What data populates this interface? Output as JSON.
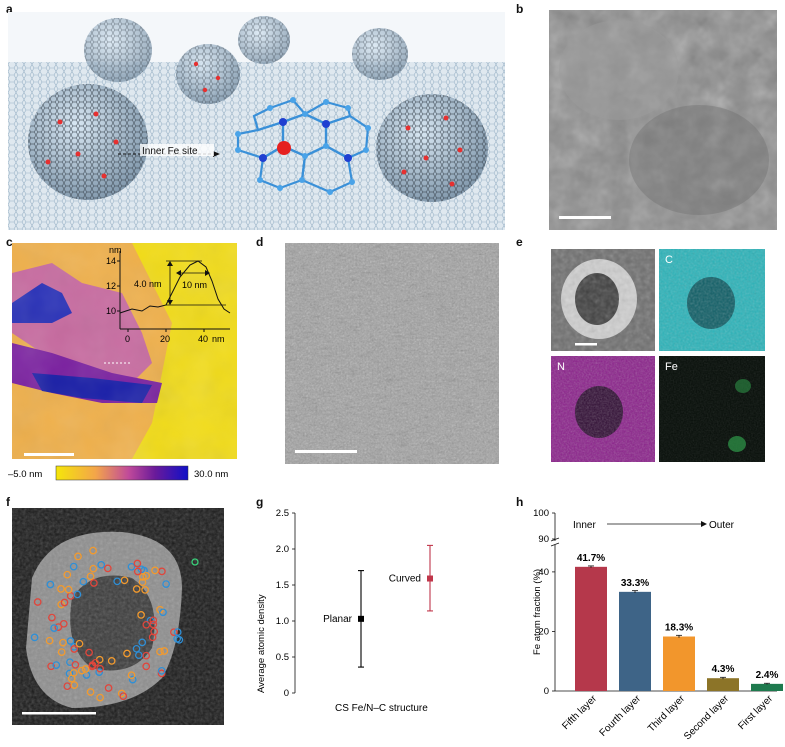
{
  "panels": {
    "a": {
      "letter": "a",
      "label": "Inner Fe site"
    },
    "b": {
      "letter": "b"
    },
    "c": {
      "letter": "c",
      "profile": {
        "ylabel": "nm",
        "yticks": [
          "14",
          "12",
          "10"
        ],
        "xticks": [
          "0",
          "20",
          "40"
        ],
        "xunit": "nm",
        "height_annot": "4.0 nm",
        "width_annot": "10 nm"
      },
      "colorbar": {
        "min": "–5.0 nm",
        "max": "30.0 nm"
      }
    },
    "d": {
      "letter": "d"
    },
    "e": {
      "letter": "e",
      "tiles": [
        "C",
        "N",
        "Fe"
      ]
    },
    "f": {
      "letter": "f"
    },
    "g": {
      "letter": "g"
    },
    "h": {
      "letter": "h",
      "inner": "Inner",
      "outer": "Outer"
    }
  },
  "chart_data": [
    {
      "panel": "g",
      "type": "scatter",
      "xlabel": "CS Fe/N–C structure",
      "ylabel": "Average atomic density",
      "ylim": [
        0,
        2.5
      ],
      "yticks": [
        "0",
        "0.5",
        "1.0",
        "1.5",
        "2.0",
        "2.5"
      ],
      "points": [
        {
          "label": "Planar",
          "value": 1.03,
          "low": 0.36,
          "high": 1.7,
          "color": "#000000"
        },
        {
          "label": "Curved",
          "value": 1.59,
          "low": 1.14,
          "high": 2.05,
          "color": "#c0364a"
        }
      ]
    },
    {
      "panel": "h",
      "type": "bar",
      "ylabel": "Fe atom fraction (%)",
      "ylim": [
        0,
        100
      ],
      "yticks": [
        "0",
        "20",
        "40",
        "90",
        "100"
      ],
      "axis_break": [
        45,
        88
      ],
      "categories": [
        "Fifth layer",
        "Fourth layer",
        "Third layer",
        "Second layer",
        "First layer"
      ],
      "values": [
        41.7,
        33.3,
        18.3,
        4.3,
        2.4
      ],
      "errors": [
        0.3,
        0.4,
        0.4,
        0.3,
        0.2
      ],
      "labels": [
        "41.7%",
        "33.3%",
        "18.3%",
        "4.3%",
        "2.4%"
      ],
      "colors": [
        "#b5384b",
        "#3e6487",
        "#f2962c",
        "#8c7428",
        "#1e7a4e"
      ]
    }
  ]
}
